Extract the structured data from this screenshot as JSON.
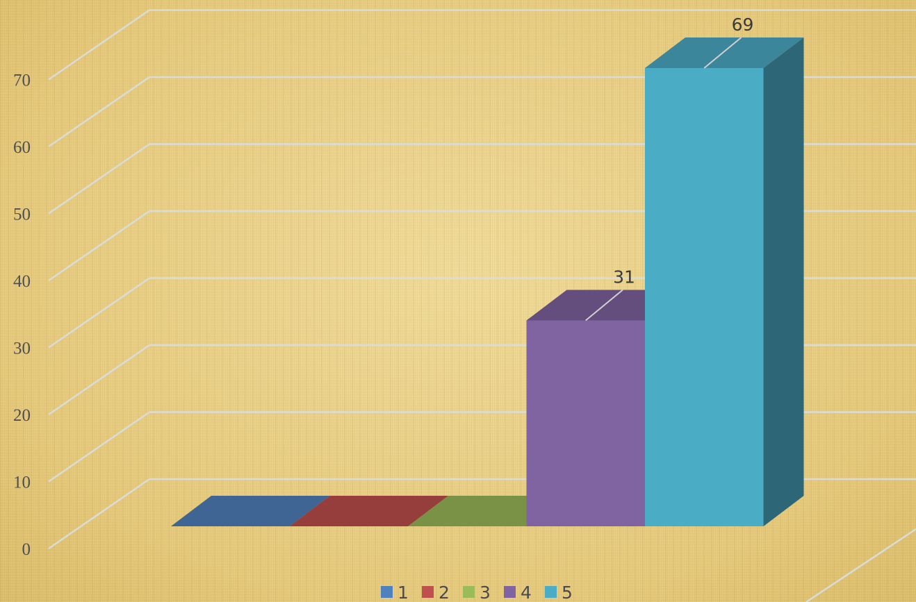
{
  "chart_data": {
    "type": "bar",
    "style": "3d-column",
    "categories": [
      "1",
      "2",
      "3",
      "4",
      "5"
    ],
    "values": [
      0,
      0,
      0,
      31,
      69
    ],
    "data_labels": [
      "",
      "",
      "",
      "31",
      "69"
    ],
    "colors": [
      "#4f81bd",
      "#c0504d",
      "#9bbb59",
      "#8064a2",
      "#4bacc6"
    ],
    "ylim": [
      0,
      70
    ],
    "y_ticks": [
      "0",
      "10",
      "20",
      "30",
      "40",
      "50",
      "60",
      "70"
    ],
    "grid": true,
    "legend": {
      "position": "bottom",
      "entries": [
        "1",
        "2",
        "3",
        "4",
        "5"
      ]
    },
    "title": "",
    "xlabel": "",
    "ylabel": ""
  }
}
